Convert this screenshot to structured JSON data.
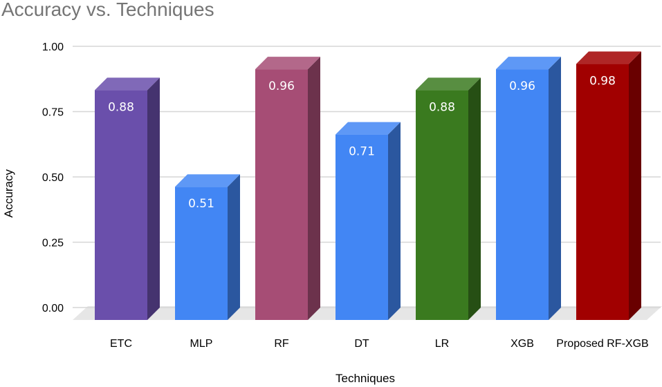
{
  "chart_data": {
    "type": "bar",
    "title": "Accuracy vs. Techniques",
    "xlabel": "Techniques",
    "ylabel": "Accuracy",
    "categories": [
      "ETC",
      "MLP",
      "RF",
      "DT",
      "LR",
      "XGB",
      "Proposed RF-XGB"
    ],
    "values": [
      0.88,
      0.51,
      0.96,
      0.71,
      0.88,
      0.96,
      0.98
    ],
    "data_labels": [
      "0.88",
      "0.51",
      "0.96",
      "0.71",
      "0.88",
      "0.96",
      "0.98"
    ],
    "colors": [
      "#6a4fab",
      "#4286f4",
      "#a64d75",
      "#4286f4",
      "#3a7a1f",
      "#4286f4",
      "#a10000"
    ],
    "ylim": [
      0,
      1
    ],
    "yticks": [
      0,
      0.25,
      0.5,
      0.75,
      1
    ],
    "ytick_labels": [
      "0.00",
      "0.25",
      "0.50",
      "0.75",
      "1.00"
    ],
    "grid": true,
    "style": "3d-bar",
    "legend": "none"
  }
}
